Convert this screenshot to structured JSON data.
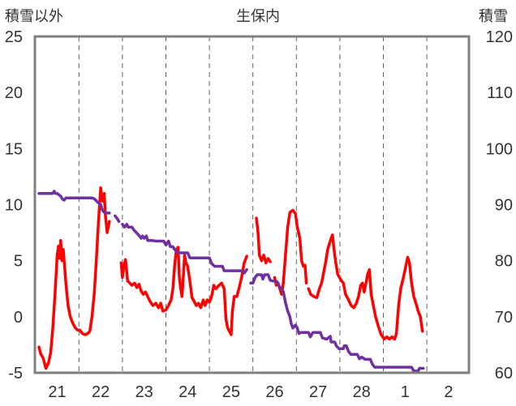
{
  "chart_data": {
    "type": "line",
    "title": "生保内",
    "ylabel_left": "積雪以外",
    "ylabel_right": "積雪",
    "x_tick_labels": [
      "21",
      "22",
      "23",
      "24",
      "25",
      "26",
      "27",
      "28",
      "1",
      "2"
    ],
    "x_range_ticks": [
      -0.5,
      9.7
    ],
    "y_left": {
      "range": [
        -5,
        25
      ],
      "ticks": [
        -5,
        0,
        5,
        10,
        15,
        20,
        25
      ]
    },
    "y_right": {
      "range": [
        60,
        120
      ],
      "ticks": [
        60,
        70,
        80,
        90,
        100,
        110,
        120
      ]
    },
    "grid": "vertical dashed at each day",
    "series": [
      {
        "axis": "left",
        "color": "#ff0000",
        "points": [
          [
            -0.42,
            -2.7
          ],
          [
            -0.38,
            -3.3
          ],
          [
            -0.32,
            -3.7
          ],
          [
            -0.26,
            -4.6
          ],
          [
            -0.2,
            -4.1
          ],
          [
            -0.15,
            -3.2
          ],
          [
            -0.1,
            -1.0
          ],
          [
            -0.05,
            2.0
          ],
          [
            0.0,
            5.5
          ],
          [
            0.03,
            6.3
          ],
          [
            0.06,
            5.2
          ],
          [
            0.08,
            6.8
          ],
          [
            0.11,
            5.0
          ],
          [
            0.14,
            6.0
          ],
          [
            0.2,
            3.0
          ],
          [
            0.25,
            1.0
          ],
          [
            0.3,
            0.0
          ],
          [
            0.36,
            -0.6
          ],
          [
            0.42,
            -1.0
          ],
          [
            0.47,
            -1.2
          ],
          [
            0.52,
            -1.2
          ],
          [
            0.58,
            -1.5
          ],
          [
            0.64,
            -1.6
          ],
          [
            0.7,
            -1.5
          ],
          [
            0.75,
            -1.3
          ],
          [
            0.8,
            0.0
          ],
          [
            0.85,
            2.0
          ],
          [
            0.9,
            5.0
          ],
          [
            0.95,
            8.5
          ],
          [
            1.0,
            11.5
          ],
          [
            1.02,
            10.8
          ],
          [
            1.05,
            10.3
          ],
          [
            1.08,
            11.0
          ],
          [
            1.11,
            9.0
          ],
          [
            1.15,
            7.5
          ],
          [
            1.2,
            8.5
          ],
          null,
          [
            1.47,
            4.8
          ],
          [
            1.5,
            3.5
          ],
          [
            1.53,
            4.5
          ],
          [
            1.57,
            5.1
          ],
          [
            1.62,
            3.2
          ],
          [
            1.67,
            3.0
          ],
          [
            1.72,
            2.8
          ],
          [
            1.78,
            3.0
          ],
          [
            1.83,
            2.6
          ],
          [
            1.88,
            2.9
          ],
          [
            1.93,
            2.3
          ],
          [
            1.98,
            2.0
          ],
          [
            2.03,
            2.2
          ],
          [
            2.08,
            1.8
          ],
          [
            2.13,
            1.4
          ],
          [
            2.2,
            1.0
          ],
          [
            2.27,
            1.2
          ],
          [
            2.33,
            0.8
          ],
          [
            2.38,
            1.2
          ],
          [
            2.43,
            0.5
          ],
          [
            2.5,
            0.6
          ],
          [
            2.56,
            1.0
          ],
          [
            2.62,
            1.5
          ],
          [
            2.66,
            2.5
          ],
          [
            2.7,
            4.5
          ],
          [
            2.74,
            6.0
          ],
          [
            2.78,
            6.2
          ],
          [
            2.81,
            3.5
          ],
          [
            2.84,
            2.5
          ],
          [
            2.87,
            1.8
          ],
          [
            2.9,
            3.5
          ],
          [
            2.93,
            5.5
          ],
          [
            2.96,
            4.8
          ],
          [
            3.0,
            4.5
          ],
          [
            3.05,
            3.2
          ],
          [
            3.1,
            1.7
          ],
          [
            3.13,
            1.5
          ],
          [
            3.2,
            1.0
          ],
          [
            3.25,
            1.2
          ],
          [
            3.3,
            0.8
          ],
          [
            3.36,
            1.5
          ],
          [
            3.4,
            1.0
          ],
          [
            3.45,
            1.5
          ],
          [
            3.5,
            1.3
          ],
          [
            3.55,
            1.8
          ],
          [
            3.6,
            2.8
          ],
          [
            3.65,
            2.5
          ],
          [
            3.72,
            2.8
          ],
          [
            3.78,
            3.0
          ],
          [
            3.84,
            2.5
          ],
          [
            3.88,
            -0.2
          ],
          [
            3.92,
            -1.0
          ],
          [
            4.0,
            -1.6
          ],
          [
            4.03,
            0.5
          ],
          [
            4.07,
            1.8
          ],
          [
            4.13,
            1.8
          ],
          [
            4.18,
            2.5
          ],
          [
            4.24,
            3.5
          ],
          [
            4.3,
            4.8
          ],
          [
            4.36,
            5.4
          ],
          null,
          [
            4.58,
            8.8
          ],
          [
            4.62,
            7.5
          ],
          [
            4.65,
            5.5
          ],
          [
            4.7,
            5.0
          ],
          [
            4.75,
            5.5
          ],
          [
            4.8,
            4.8
          ],
          [
            4.85,
            5.2
          ],
          [
            4.9,
            4.9
          ],
          null,
          [
            5.0,
            3.5
          ],
          [
            5.04,
            2.8
          ],
          [
            5.08,
            3.0
          ],
          [
            5.12,
            2.5
          ],
          [
            5.16,
            2.0
          ],
          [
            5.2,
            3.0
          ],
          [
            5.25,
            5.5
          ],
          [
            5.3,
            8.0
          ],
          [
            5.35,
            9.3
          ],
          [
            5.42,
            9.5
          ],
          [
            5.48,
            9.2
          ],
          [
            5.52,
            8.0
          ],
          [
            5.58,
            7.0
          ],
          [
            5.62,
            5.0
          ],
          [
            5.66,
            4.5
          ],
          [
            5.7,
            4.6
          ],
          [
            5.73,
            3.0
          ],
          null,
          [
            5.78,
            2.5
          ],
          [
            5.83,
            2.0
          ],
          [
            5.9,
            1.8
          ],
          [
            5.97,
            1.7
          ],
          [
            6.03,
            2.5
          ],
          [
            6.08,
            3.0
          ],
          [
            6.13,
            4.0
          ],
          [
            6.18,
            5.0
          ],
          [
            6.22,
            6.0
          ],
          [
            6.26,
            6.5
          ],
          [
            6.3,
            7.0
          ],
          [
            6.33,
            7.3
          ],
          [
            6.36,
            6.2
          ],
          [
            6.4,
            5.0
          ],
          [
            6.45,
            3.8
          ],
          [
            6.52,
            3.3
          ],
          [
            6.58,
            3.0
          ],
          [
            6.63,
            2.0
          ],
          [
            6.7,
            1.5
          ],
          [
            6.76,
            1.0
          ],
          [
            6.82,
            0.8
          ],
          [
            6.88,
            1.2
          ],
          [
            6.93,
            1.8
          ],
          [
            6.98,
            2.8
          ],
          [
            7.02,
            3.0
          ],
          [
            7.06,
            2.2
          ],
          [
            7.1,
            3.0
          ],
          [
            7.14,
            3.8
          ],
          [
            7.18,
            4.2
          ],
          [
            7.22,
            2.0
          ],
          [
            7.27,
            1.0
          ],
          [
            7.32,
            0.0
          ],
          [
            7.38,
            -0.8
          ],
          [
            7.45,
            -1.6
          ],
          [
            7.52,
            -2.0
          ],
          [
            7.58,
            -1.8
          ],
          [
            7.64,
            -2.0
          ],
          [
            7.7,
            -1.8
          ],
          [
            7.76,
            -2.0
          ],
          [
            7.8,
            -1.5
          ],
          [
            7.85,
            1.0
          ],
          [
            7.9,
            2.5
          ],
          [
            7.95,
            3.3
          ],
          [
            8.0,
            4.2
          ],
          [
            8.06,
            5.3
          ],
          [
            8.1,
            4.8
          ],
          [
            8.15,
            3.0
          ],
          [
            8.2,
            1.8
          ],
          [
            8.25,
            1.2
          ],
          [
            8.3,
            0.5
          ],
          [
            8.35,
            0.0
          ],
          [
            8.4,
            -1.3
          ]
        ]
      },
      {
        "axis": "right",
        "color": "#7030a0",
        "points": [
          [
            -0.42,
            92
          ],
          [
            -0.1,
            92
          ],
          [
            -0.07,
            92.4
          ],
          [
            -0.04,
            92
          ],
          [
            0.0,
            92
          ],
          [
            0.08,
            91.5
          ],
          [
            0.12,
            91
          ],
          [
            0.16,
            90.8
          ],
          [
            0.2,
            91.2
          ],
          [
            0.6,
            91.2
          ],
          [
            0.8,
            91.2
          ],
          [
            0.86,
            91
          ],
          [
            0.92,
            90.5
          ],
          [
            1.0,
            90
          ],
          [
            1.04,
            89
          ],
          [
            1.1,
            88.5
          ],
          [
            1.2,
            88.5
          ],
          null,
          [
            1.33,
            88
          ],
          [
            1.38,
            87.5
          ],
          [
            1.42,
            87
          ],
          null,
          [
            1.5,
            86.5
          ],
          [
            1.55,
            86
          ],
          [
            1.6,
            86.5
          ],
          [
            1.63,
            86
          ],
          [
            1.72,
            86
          ],
          [
            1.76,
            85.5
          ],
          [
            1.82,
            85
          ],
          [
            1.88,
            84.5
          ],
          [
            1.93,
            84
          ],
          [
            1.96,
            84.4
          ],
          [
            2.0,
            84
          ],
          [
            2.05,
            84.4
          ],
          [
            2.08,
            83.6
          ],
          [
            2.18,
            83.6
          ],
          [
            2.28,
            83.5
          ],
          [
            2.45,
            83.5
          ],
          [
            2.5,
            82.8
          ],
          [
            2.56,
            83.5
          ],
          [
            2.6,
            82.5
          ],
          [
            2.66,
            82.5
          ],
          [
            2.7,
            82
          ],
          [
            2.78,
            81.4
          ],
          [
            3.0,
            81.4
          ],
          [
            3.05,
            80.5
          ],
          [
            3.15,
            80.5
          ],
          [
            3.5,
            80.5
          ],
          [
            3.55,
            79.5
          ],
          [
            3.62,
            79
          ],
          [
            3.8,
            79
          ],
          [
            3.84,
            78.2
          ],
          [
            4.0,
            78.2
          ],
          [
            4.25,
            78.2
          ],
          [
            4.3,
            77.8
          ],
          [
            4.36,
            78.4
          ],
          null,
          [
            4.45,
            76
          ],
          [
            4.5,
            76
          ],
          [
            4.55,
            77
          ],
          [
            4.6,
            77.5
          ],
          [
            4.7,
            77.5
          ],
          [
            4.73,
            76.7
          ],
          [
            4.77,
            77.5
          ],
          [
            4.85,
            77.5
          ],
          [
            4.9,
            76.5
          ],
          [
            4.95,
            76.4
          ],
          [
            5.05,
            76.3
          ],
          [
            5.1,
            75.5
          ],
          [
            5.15,
            75
          ],
          [
            5.2,
            74.5
          ],
          [
            5.25,
            72.5
          ],
          [
            5.3,
            71
          ],
          [
            5.35,
            70
          ],
          [
            5.38,
            68.8
          ],
          [
            5.42,
            68
          ],
          [
            5.48,
            68.5
          ],
          [
            5.52,
            68
          ],
          [
            5.56,
            67
          ],
          [
            5.6,
            67.2
          ],
          [
            5.78,
            67.2
          ],
          [
            5.82,
            66.4
          ],
          [
            5.88,
            67.2
          ],
          [
            6.05,
            67.2
          ],
          [
            6.1,
            66.2
          ],
          [
            6.2,
            66
          ],
          [
            6.28,
            66.5
          ],
          [
            6.3,
            65.5
          ],
          [
            6.38,
            65.5
          ],
          [
            6.42,
            64.8
          ],
          [
            6.48,
            64.3
          ],
          [
            6.58,
            64.3
          ],
          [
            6.6,
            64.8
          ],
          [
            6.65,
            64.8
          ],
          [
            6.7,
            63.8
          ],
          [
            6.75,
            63.3
          ],
          [
            6.9,
            63.3
          ],
          [
            6.95,
            62.5
          ],
          [
            7.0,
            62.8
          ],
          [
            7.08,
            62.4
          ],
          [
            7.2,
            62.4
          ],
          [
            7.25,
            61.5
          ],
          [
            7.3,
            61
          ],
          [
            7.52,
            61
          ],
          [
            7.9,
            61
          ],
          [
            8.15,
            61
          ],
          [
            8.2,
            60.3
          ],
          [
            8.3,
            60.3
          ],
          [
            8.33,
            60.8
          ],
          [
            8.42,
            60.8
          ]
        ]
      }
    ]
  }
}
